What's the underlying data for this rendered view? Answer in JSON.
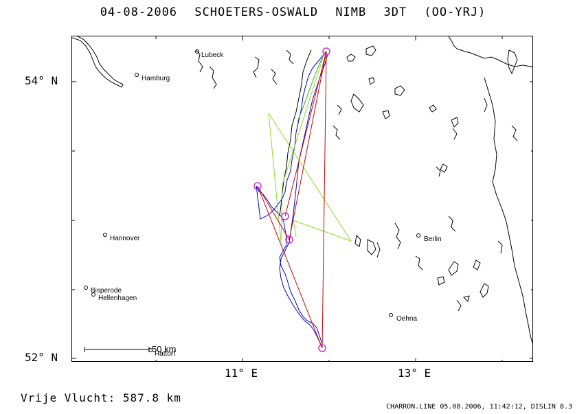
{
  "header": {
    "date": "04-08-2006",
    "pilot": "SCHOETERS-OSWALD",
    "glider": "NIMB 3DT (OO-YRJ)"
  },
  "axes": {
    "y_ticks": [
      "54° N",
      "52° N"
    ],
    "x_ticks": [
      "11° E",
      "13° E"
    ]
  },
  "cities": [
    {
      "name": "Lubeck"
    },
    {
      "name": "Hamburg"
    },
    {
      "name": "Hannover"
    },
    {
      "name": "Berlin"
    },
    {
      "name": "Bisperode"
    },
    {
      "name": "Hellenhagen"
    },
    {
      "name": "Hattorf"
    },
    {
      "name": "Oehna"
    }
  ],
  "scale_bar": {
    "label": "50 km"
  },
  "footer": {
    "distance": "Vrije Vlucht:  587.8 km",
    "credit": "CHARRON.LINE 05.08.2006, 11:42:12, DISLIN 8.3"
  },
  "colors": {
    "track": "#0000cc",
    "declared_route": "#cc0000",
    "alt_route": "#88dd22",
    "turnpoint": "#cc33cc"
  }
}
